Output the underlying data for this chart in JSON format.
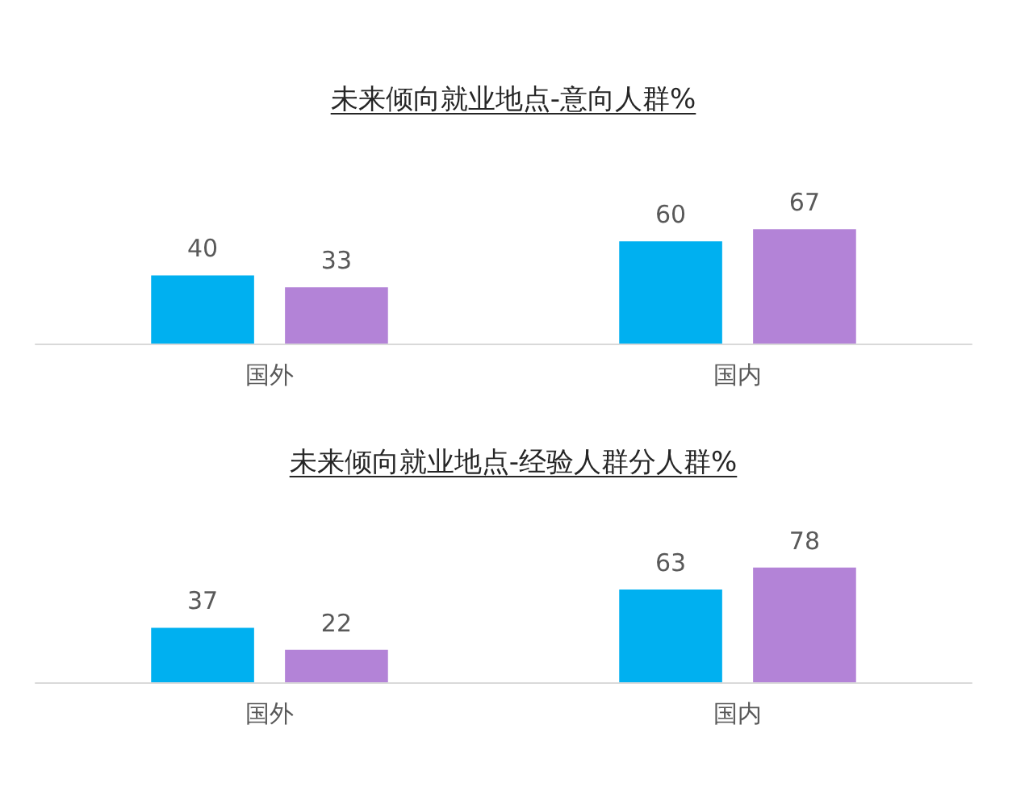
{
  "chart_data": [
    {
      "type": "bar",
      "title": "未来倾向就业地点-意向人群%",
      "categories": [
        "国外",
        "国内"
      ],
      "series": [
        {
          "color": "#00b0f0",
          "values": [
            40,
            60
          ]
        },
        {
          "color": "#b383d7",
          "values": [
            33,
            67
          ]
        }
      ],
      "data_labels": true,
      "tick_labels": "x"
    },
    {
      "type": "bar",
      "title": "未来倾向就业地点-经验人群分人群%",
      "categories": [
        "国外",
        "国内"
      ],
      "series": [
        {
          "color": "#00b0f0",
          "values": [
            37,
            63
          ]
        },
        {
          "color": "#b383d7",
          "values": [
            22,
            78
          ]
        }
      ],
      "data_labels": true,
      "tick_labels": "x"
    }
  ]
}
